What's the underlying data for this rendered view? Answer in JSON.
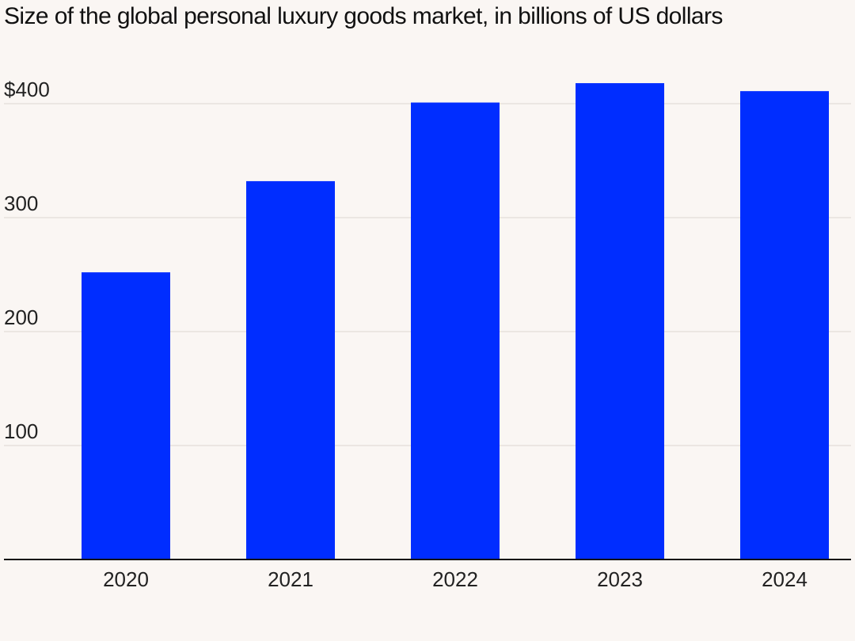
{
  "chart_data": {
    "type": "bar",
    "title": "Size of the global personal luxury goods market, in billions of US dollars",
    "xlabel": "",
    "ylabel": "",
    "categories": [
      "2020",
      "2021",
      "2022",
      "2023",
      "2024"
    ],
    "values": [
      252,
      332,
      401,
      418,
      411
    ],
    "ylim": [
      0,
      400
    ],
    "yticks": [
      100,
      200,
      300,
      400
    ],
    "ytick_labels": [
      "100",
      "200",
      "300",
      "$400"
    ],
    "grid": true,
    "legend": "none",
    "bar_color": "#002dff",
    "grid_color": "#e6e1dd",
    "axis_color": "#111111"
  }
}
